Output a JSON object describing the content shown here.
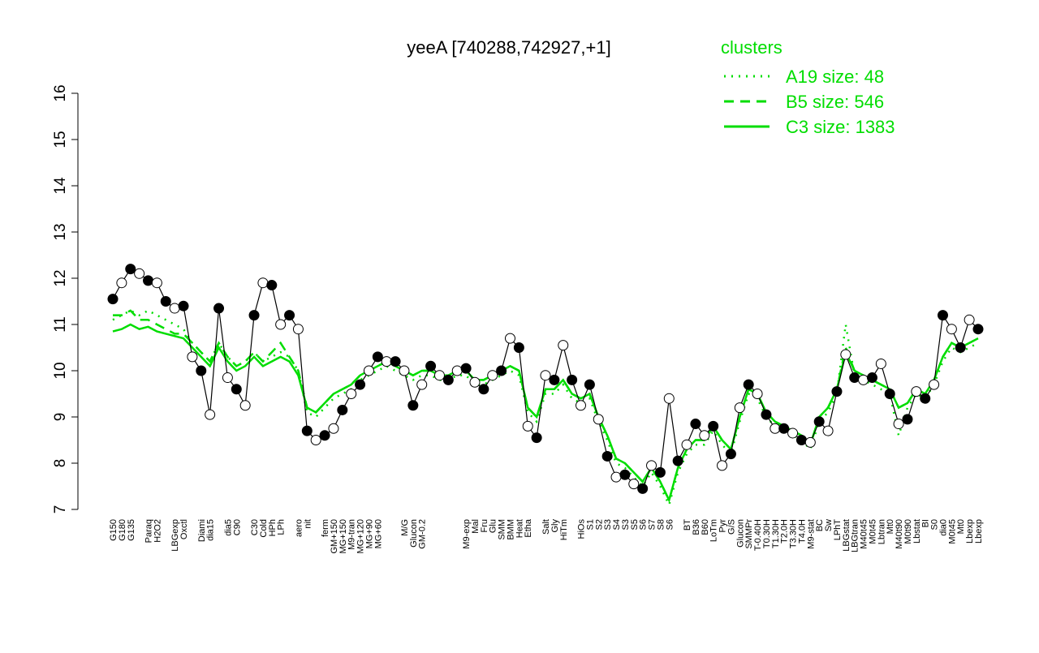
{
  "chart_data": {
    "type": "line",
    "title": "yeeA [740288,742927,+1]",
    "legend_title": "clusters",
    "categories": [
      "G150",
      "G180",
      "G135",
      null,
      "Paraq",
      "H2O2",
      null,
      "LBGexp",
      "Oxctl",
      null,
      "Diami",
      "dia15",
      null,
      "dia5",
      "C90",
      null,
      "C30",
      "Cold",
      "HPh",
      "LPh",
      null,
      "aero",
      "nit",
      null,
      "ferm",
      "GM+150",
      "MG+150",
      "M9-tran",
      "MG+120",
      "MG+90",
      "MG+60",
      null,
      null,
      "M/G",
      "Glucon",
      "GM-0.2",
      null,
      null,
      null,
      null,
      "M9-exp",
      "Mal",
      "Fru",
      "Glu",
      "SMM",
      "BMM",
      "Heat",
      "Etha",
      null,
      "Salt",
      "Gly",
      "HiTm",
      null,
      "HiOs",
      "S1",
      "S2",
      "S3",
      "S4",
      "S3",
      "S5",
      "S6",
      "S7",
      "S8",
      "S6",
      null,
      "BT",
      "B36",
      "B60",
      "LoTm",
      "Pyr",
      "G/S",
      "Glucon",
      "SMMPr",
      "T-0.40H",
      "T0.30H",
      "T1.30H",
      "T2.0H",
      "T3.30H",
      "T4.0H",
      "M9-stat",
      "BC",
      "Sw",
      "LPhT",
      "LBGstat",
      "LBGtran",
      "M40t45",
      "M0t45",
      "Lbtran",
      "Mt0",
      "M40t90",
      "M0t90",
      "Lbstat",
      "BI",
      "S0",
      "dia0",
      "M0t45",
      "Mt0",
      "Lbexp",
      "Lbexp"
    ],
    "values": [
      11.55,
      11.9,
      12.2,
      12.1,
      11.95,
      11.9,
      11.5,
      11.35,
      11.4,
      10.3,
      10.0,
      9.05,
      11.35,
      9.85,
      9.6,
      9.25,
      11.2,
      11.9,
      11.85,
      11.0,
      11.2,
      10.9,
      8.7,
      8.5,
      8.6,
      8.75,
      9.15,
      9.5,
      9.7,
      10.0,
      10.3,
      10.2,
      10.2,
      10.0,
      9.25,
      9.7,
      10.1,
      9.9,
      9.8,
      10.0,
      10.05,
      9.75,
      9.6,
      9.9,
      10.0,
      10.7,
      10.5,
      8.8,
      8.55,
      9.9,
      9.8,
      10.55,
      9.8,
      9.25,
      9.7,
      8.95,
      8.15,
      7.7,
      7.75,
      7.55,
      7.45,
      7.95,
      7.8,
      9.4,
      8.05,
      8.4,
      8.85,
      8.6,
      8.8,
      7.95,
      8.2,
      9.2,
      9.7,
      9.5,
      9.05,
      8.75,
      8.75,
      8.65,
      8.5,
      8.45,
      8.9,
      8.7,
      9.55,
      10.35,
      9.85,
      9.8,
      9.85,
      10.15,
      9.5,
      8.85,
      8.95,
      9.55,
      9.4,
      9.7,
      11.2,
      10.9,
      10.5,
      11.1,
      10.9
    ],
    "color": "#000000",
    "clusters": [
      {
        "name": "A19 size: 48",
        "dash": "dotted",
        "color": "#00dd00",
        "values": [
          11.1,
          11.2,
          11.3,
          11.2,
          11.3,
          11.2,
          11.1,
          11.0,
          10.9,
          10.6,
          10.4,
          10.2,
          10.6,
          10.3,
          10.1,
          10.2,
          10.4,
          10.2,
          10.3,
          10.4,
          10.3,
          10.0,
          9.1,
          9.0,
          9.2,
          9.4,
          9.5,
          9.6,
          9.8,
          9.9,
          10.0,
          10.1,
          10.0,
          9.9,
          9.8,
          9.9,
          9.9,
          9.8,
          9.8,
          9.9,
          9.9,
          9.7,
          9.7,
          9.8,
          9.9,
          10.0,
          9.9,
          9.1,
          8.9,
          9.5,
          9.5,
          9.7,
          9.4,
          9.3,
          9.4,
          8.9,
          8.5,
          8.0,
          7.9,
          7.7,
          7.5,
          7.8,
          7.5,
          7.1,
          7.8,
          8.2,
          8.4,
          8.4,
          8.7,
          8.4,
          8.2,
          8.9,
          9.5,
          9.4,
          9.0,
          8.8,
          8.7,
          8.6,
          8.5,
          8.3,
          8.9,
          9.1,
          9.5,
          11.0,
          9.9,
          9.8,
          9.7,
          9.6,
          9.5,
          8.6,
          9.2,
          9.5,
          9.4,
          9.7,
          10.2,
          10.5,
          10.4,
          10.5,
          10.6
        ]
      },
      {
        "name": "B5 size: 546",
        "dash": "dashed",
        "color": "#00dd00",
        "values": [
          11.2,
          11.2,
          11.3,
          11.1,
          11.1,
          11.0,
          10.9,
          10.8,
          10.8,
          10.6,
          10.4,
          10.2,
          10.6,
          10.3,
          10.1,
          10.2,
          10.4,
          10.2,
          10.4,
          10.6,
          10.3,
          10.0,
          9.2,
          9.1,
          9.3,
          9.5,
          9.6,
          9.7,
          9.9,
          10.0,
          10.1,
          10.2,
          10.1,
          10.0,
          9.9,
          10.0,
          10.0,
          9.9,
          9.9,
          10.0,
          10.0,
          9.8,
          9.8,
          9.9,
          10.0,
          10.1,
          10.0,
          9.2,
          9.0,
          9.6,
          9.6,
          9.8,
          9.5,
          9.4,
          9.5,
          9.0,
          8.6,
          8.1,
          8.0,
          7.8,
          7.6,
          7.9,
          7.6,
          7.2,
          7.9,
          8.3,
          8.5,
          8.5,
          8.8,
          8.5,
          8.3,
          9.0,
          9.6,
          9.5,
          9.1,
          8.9,
          8.8,
          8.7,
          8.6,
          8.4,
          9.0,
          9.2,
          9.6,
          10.5,
          10.0,
          9.9,
          9.8,
          9.7,
          9.6,
          9.2,
          9.3,
          9.6,
          9.5,
          9.8,
          10.3,
          10.6,
          10.5,
          10.6,
          10.7
        ]
      },
      {
        "name": "C3 size: 1383",
        "dash": "solid",
        "color": "#00dd00",
        "values": [
          10.85,
          10.9,
          11.0,
          10.9,
          10.95,
          10.85,
          10.8,
          10.75,
          10.7,
          10.5,
          10.3,
          10.1,
          10.5,
          10.2,
          10.0,
          10.1,
          10.3,
          10.1,
          10.2,
          10.3,
          10.2,
          9.9,
          9.2,
          9.1,
          9.3,
          9.5,
          9.6,
          9.7,
          9.9,
          10.0,
          10.1,
          10.2,
          10.1,
          10.0,
          9.9,
          10.0,
          10.0,
          9.9,
          9.9,
          10.0,
          10.0,
          9.8,
          9.8,
          9.9,
          10.0,
          10.1,
          10.0,
          9.2,
          9.0,
          9.6,
          9.6,
          9.8,
          9.5,
          9.4,
          9.5,
          9.0,
          8.6,
          8.1,
          8.0,
          7.8,
          7.6,
          7.9,
          7.6,
          7.2,
          7.9,
          8.3,
          8.5,
          8.5,
          8.8,
          8.5,
          8.3,
          9.0,
          9.6,
          9.5,
          9.1,
          8.9,
          8.8,
          8.7,
          8.6,
          8.4,
          9.0,
          9.2,
          9.6,
          10.4,
          10.0,
          9.9,
          9.8,
          9.7,
          9.6,
          9.2,
          9.3,
          9.6,
          9.5,
          9.8,
          10.3,
          10.6,
          10.5,
          10.6,
          10.7
        ]
      }
    ],
    "ylim": [
      7,
      16
    ],
    "yticks": [
      7,
      8,
      9,
      10,
      11,
      12,
      13,
      14,
      15,
      16
    ]
  }
}
